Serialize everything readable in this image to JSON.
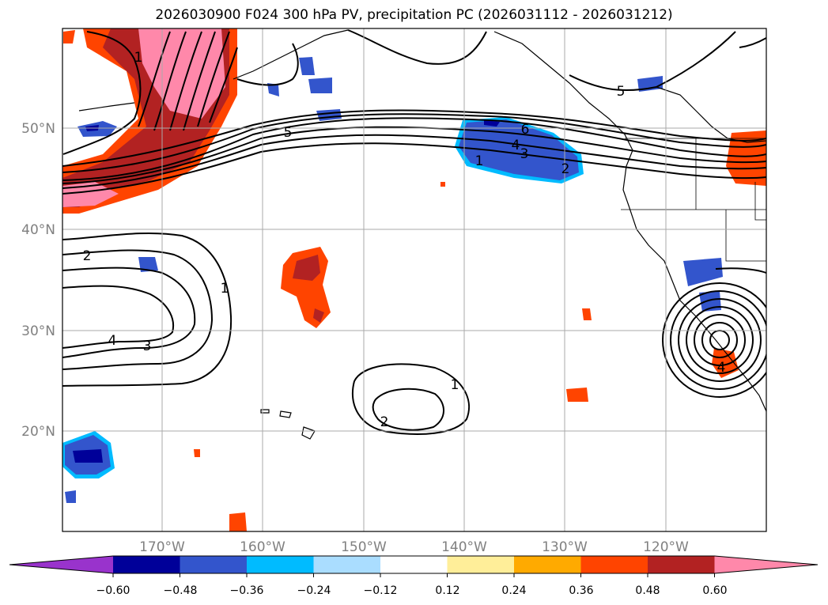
{
  "title": "2026030900 F024 300 hPa PV, precipitation PC (2026031112 - 2026031212)",
  "lat_labels": [
    "50°N",
    "40°N",
    "30°N",
    "20°N"
  ],
  "lon_labels": [
    "170°W",
    "160°W",
    "150°W",
    "140°W",
    "130°W",
    "120°W"
  ],
  "colorbar": {
    "ticks": [
      "−0.60",
      "−0.48",
      "−0.36",
      "−0.24",
      "−0.12",
      "0.12",
      "0.24",
      "0.36",
      "0.48",
      "0.60"
    ],
    "colors": [
      "#9933cc",
      "#000099",
      "#3355cc",
      "#00bbff",
      "#aaddff",
      "#ffffff",
      "#ffee99",
      "#ffaa00",
      "#ff4400",
      "#b22222",
      "#ff88aa"
    ]
  },
  "contour_labels": [
    "1",
    "5",
    "6",
    "4",
    "3",
    "1",
    "2",
    "5",
    "2",
    "4",
    "3",
    "1",
    "1",
    "2",
    "4"
  ],
  "colors": {
    "contour": "#000000",
    "grid": "#aaaaaa",
    "coast": "#000000",
    "axis_text": "#808080"
  }
}
